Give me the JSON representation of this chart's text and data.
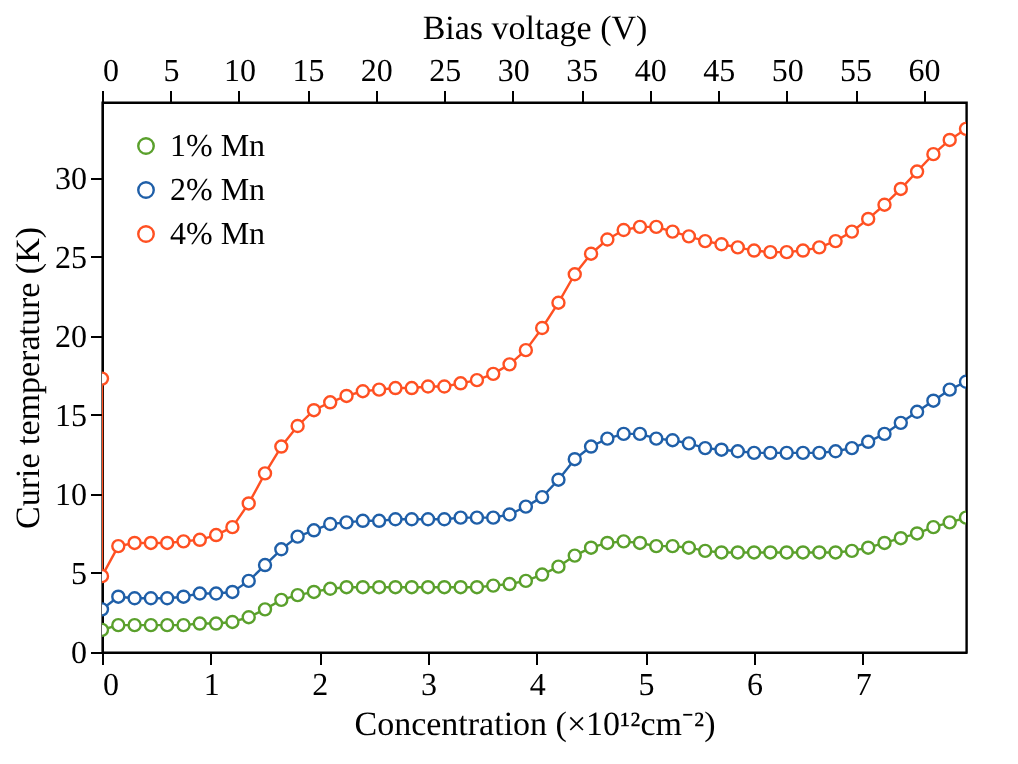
{
  "chart_data": {
    "type": "line",
    "xlabel": "Concentration (×10¹²cm⁻²)",
    "ylabel": "Curie temperature (K)",
    "x2label": "Bias voltage (V)",
    "x": [
      0,
      0.15,
      0.3,
      0.45,
      0.6,
      0.75,
      0.9,
      1.05,
      1.2,
      1.35,
      1.5,
      1.65,
      1.8,
      1.95,
      2.1,
      2.25,
      2.4,
      2.55,
      2.7,
      2.85,
      3,
      3.15,
      3.3,
      3.45,
      3.6,
      3.75,
      3.9,
      4.05,
      4.2,
      4.35,
      4.5,
      4.65,
      4.8,
      4.95,
      5.1,
      5.25,
      5.4,
      5.55,
      5.7,
      5.85,
      6,
      6.15,
      6.3,
      6.45,
      6.6,
      6.75,
      6.9,
      7.05,
      7.2,
      7.35,
      7.5,
      7.65,
      7.8,
      7.95
    ],
    "series": [
      {
        "name": "1% Mn",
        "color": "#5aa02c",
        "values": [
          1.4,
          1.7,
          1.7,
          1.7,
          1.7,
          1.7,
          1.8,
          1.8,
          1.9,
          2.2,
          2.7,
          3.3,
          3.6,
          3.8,
          4.0,
          4.1,
          4.1,
          4.1,
          4.1,
          4.1,
          4.1,
          4.1,
          4.1,
          4.1,
          4.2,
          4.3,
          4.5,
          4.9,
          5.4,
          6.1,
          6.6,
          6.9,
          7.0,
          6.9,
          6.7,
          6.7,
          6.6,
          6.4,
          6.3,
          6.3,
          6.3,
          6.3,
          6.3,
          6.3,
          6.3,
          6.3,
          6.4,
          6.6,
          6.9,
          7.2,
          7.5,
          7.9,
          8.2,
          8.5
        ]
      },
      {
        "name": "2% Mn",
        "color": "#1f5fa8",
        "values": [
          2.7,
          3.5,
          3.4,
          3.4,
          3.4,
          3.5,
          3.7,
          3.7,
          3.8,
          4.5,
          5.5,
          6.5,
          7.3,
          7.7,
          8.1,
          8.2,
          8.3,
          8.3,
          8.4,
          8.4,
          8.4,
          8.4,
          8.5,
          8.5,
          8.5,
          8.7,
          9.2,
          9.8,
          10.9,
          12.2,
          13.0,
          13.5,
          13.8,
          13.8,
          13.5,
          13.4,
          13.2,
          12.9,
          12.8,
          12.7,
          12.6,
          12.6,
          12.6,
          12.6,
          12.6,
          12.7,
          12.9,
          13.3,
          13.8,
          14.5,
          15.2,
          15.9,
          16.6,
          17.1
        ]
      },
      {
        "name": "4% Mn",
        "color": "#ff5022",
        "x": [
          0,
          0,
          0.15,
          0.3,
          0.45,
          0.6,
          0.75,
          0.9,
          1.05,
          1.2,
          1.35,
          1.5,
          1.65,
          1.8,
          1.95,
          2.1,
          2.25,
          2.4,
          2.55,
          2.7,
          2.85,
          3,
          3.15,
          3.3,
          3.45,
          3.6,
          3.75,
          3.9,
          4.05,
          4.2,
          4.35,
          4.5,
          4.65,
          4.8,
          4.95,
          5.1,
          5.25,
          5.4,
          5.55,
          5.7,
          5.85,
          6,
          6.15,
          6.3,
          6.45,
          6.6,
          6.75,
          6.9,
          7.05,
          7.2,
          7.35,
          7.5,
          7.65,
          7.8,
          7.95
        ],
        "values": [
          17.3,
          4.8,
          6.7,
          6.9,
          6.9,
          6.9,
          7.0,
          7.1,
          7.4,
          7.9,
          9.4,
          11.3,
          13.0,
          14.3,
          15.3,
          15.8,
          16.2,
          16.5,
          16.6,
          16.7,
          16.7,
          16.8,
          16.8,
          17.0,
          17.2,
          17.6,
          18.2,
          19.1,
          20.5,
          22.1,
          23.9,
          25.2,
          26.1,
          26.7,
          26.9,
          26.9,
          26.6,
          26.3,
          26.0,
          25.8,
          25.6,
          25.4,
          25.3,
          25.3,
          25.4,
          25.6,
          26.0,
          26.6,
          27.4,
          28.3,
          29.3,
          30.4,
          31.5,
          32.4,
          33.1
        ]
      }
    ],
    "xlim": [
      0,
      7.95
    ],
    "xticks": [
      0,
      1,
      2,
      3,
      4,
      5,
      6,
      7
    ],
    "x2lim": [
      0,
      63.1
    ],
    "x2ticks": [
      0,
      5,
      10,
      15,
      20,
      25,
      30,
      35,
      40,
      45,
      50,
      55,
      60
    ],
    "ylim": [
      0,
      34.8
    ],
    "yticks": [
      0,
      5,
      10,
      15,
      20,
      25,
      30
    ],
    "grid": false,
    "legend": "top left",
    "marker": "circle",
    "line_style": "solid"
  }
}
